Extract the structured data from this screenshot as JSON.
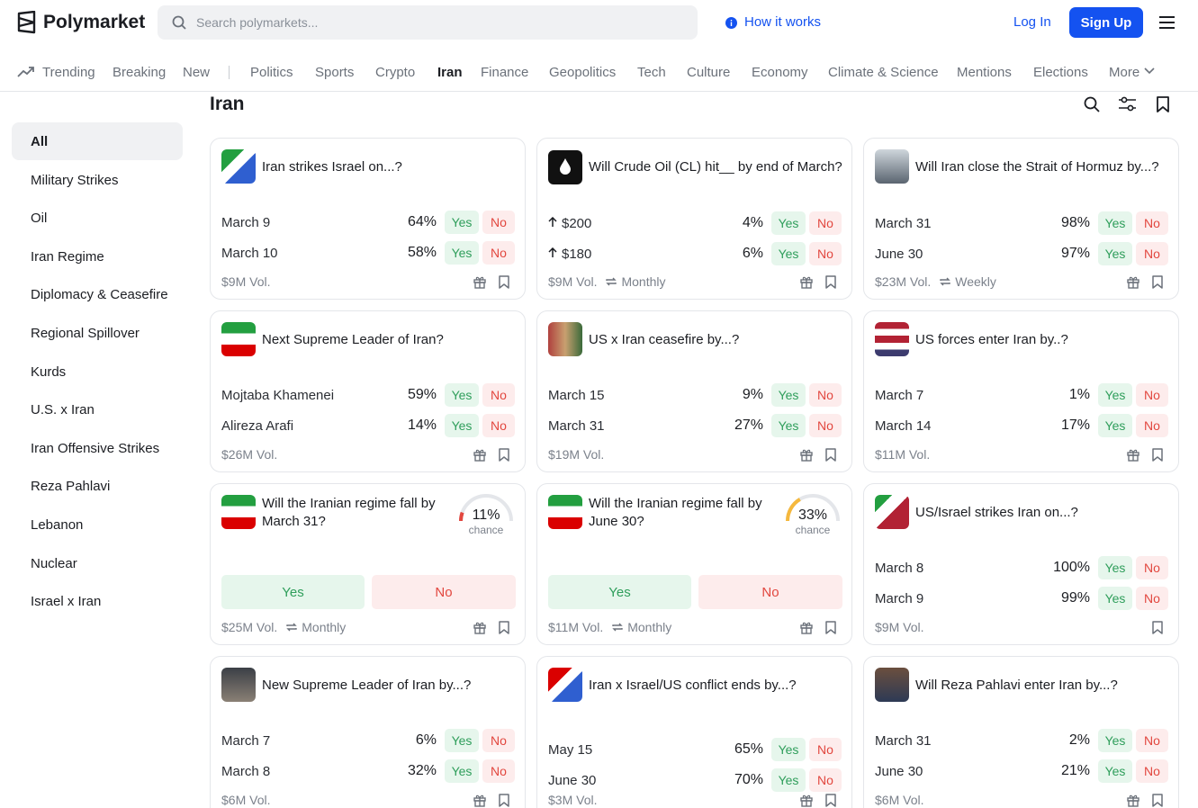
{
  "header": {
    "logo": "Polymarket",
    "search_placeholder": "Search polymarkets...",
    "how_it_works": "How it works",
    "login": "Log In",
    "signup": "Sign Up"
  },
  "nav": [
    "Trending",
    "Breaking",
    "New",
    "Politics",
    "Sports",
    "Crypto",
    "Iran",
    "Finance",
    "Geopolitics",
    "Tech",
    "Culture",
    "Economy",
    "Climate & Science",
    "Mentions",
    "Elections",
    "More"
  ],
  "page_title": "Iran",
  "sidebar": [
    "All",
    "Military Strikes",
    "Oil",
    "Iran Regime",
    "Diplomacy & Ceasefire",
    "Regional Spillover",
    "Kurds",
    "U.S. x Iran",
    "Iran Offensive Strikes",
    "Reza Pahlavi",
    "Lebanon",
    "Nuclear",
    "Israel x Iran"
  ],
  "buttons": {
    "yes": "Yes",
    "no": "No"
  },
  "cards": [
    {
      "title": "Iran strikes Israel on...?",
      "outcomes": [
        {
          "label": "March 9",
          "pct": "64%"
        },
        {
          "label": "March 10",
          "pct": "58%"
        }
      ],
      "volume": "$9M Vol."
    },
    {
      "title": "Will Crude Oil (CL) hit__ by end of March?",
      "outcomes": [
        {
          "label": "$200",
          "pct": "4%"
        },
        {
          "label": "$180",
          "pct": "6%"
        }
      ],
      "volume": "$9M Vol.",
      "recurrence": "Monthly"
    },
    {
      "title": "Will Iran close the Strait of Hormuz by...?",
      "outcomes": [
        {
          "label": "March 31",
          "pct": "98%"
        },
        {
          "label": "June 30",
          "pct": "97%"
        }
      ],
      "volume": "$23M Vol.",
      "recurrence": "Weekly"
    },
    {
      "title": "Next Supreme Leader of Iran?",
      "outcomes": [
        {
          "label": "Mojtaba Khamenei",
          "pct": "59%"
        },
        {
          "label": "Alireza Arafi",
          "pct": "14%"
        }
      ],
      "volume": "$26M Vol."
    },
    {
      "title": "US x Iran ceasefire by...?",
      "outcomes": [
        {
          "label": "March 15",
          "pct": "9%"
        },
        {
          "label": "March 31",
          "pct": "27%"
        }
      ],
      "volume": "$19M Vol."
    },
    {
      "title": "US forces enter Iran by..?",
      "outcomes": [
        {
          "label": "March 7",
          "pct": "1%"
        },
        {
          "label": "March 14",
          "pct": "17%"
        }
      ],
      "volume": "$11M Vol."
    },
    {
      "title": "Will the Iranian regime fall by March 31?",
      "chance": 11,
      "chance_label": "11%",
      "chance_text": "chance",
      "volume": "$25M Vol.",
      "recurrence": "Monthly"
    },
    {
      "title": "Will the Iranian regime fall by June 30?",
      "chance": 33,
      "chance_label": "33%",
      "chance_text": "chance",
      "volume": "$11M Vol.",
      "recurrence": "Monthly"
    },
    {
      "title": "US/Israel strikes Iran on...?",
      "outcomes": [
        {
          "label": "March 8",
          "pct": "100%"
        },
        {
          "label": "March 9",
          "pct": "99%"
        }
      ],
      "volume": "$9M Vol."
    },
    {
      "title": "New Supreme Leader of Iran by...?",
      "outcomes": [
        {
          "label": "March 7",
          "pct": "6%"
        },
        {
          "label": "March 8",
          "pct": "32%"
        }
      ],
      "volume": "$6M Vol."
    },
    {
      "title": "Iran x Israel/US conflict ends by...?",
      "outcomes": [
        {
          "label": "May 15",
          "pct": "65%"
        },
        {
          "label": "June 30",
          "pct": "70%"
        }
      ],
      "volume": "$3M Vol."
    },
    {
      "title": "Will Reza Pahlavi enter Iran by...?",
      "outcomes": [
        {
          "label": "March 31",
          "pct": "2%"
        },
        {
          "label": "June 30",
          "pct": "21%"
        }
      ],
      "volume": "$6M Vol."
    }
  ]
}
